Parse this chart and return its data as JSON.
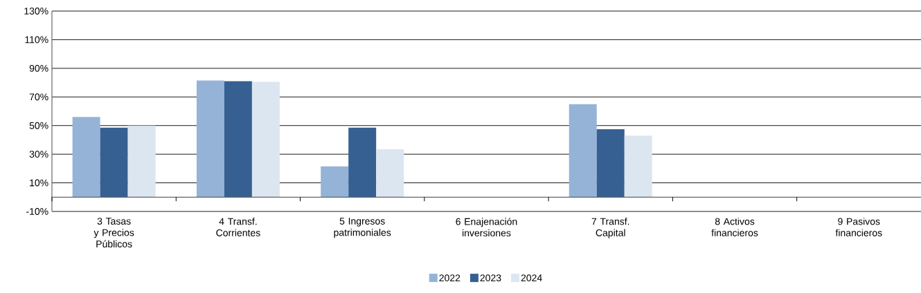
{
  "chart_data": {
    "type": "bar",
    "categories": [
      "3 Tasas y Precios Públicos",
      "4 Transf. Corrientes",
      "5 Ingresos patrimoniales",
      "6 Enajenación inversiones",
      "7 Transf. Capital",
      "8 Activos financieros",
      "9 Pasivos financieros"
    ],
    "series": [
      {
        "name": "2022",
        "color": "#95b3d7",
        "values": [
          56,
          81.5,
          21.5,
          0,
          65,
          0,
          0
        ]
      },
      {
        "name": "2023",
        "color": "#366092",
        "values": [
          48.5,
          81,
          48.5,
          0,
          47.5,
          0,
          0
        ]
      },
      {
        "name": "2024",
        "color": "#dce6f1",
        "values": [
          50,
          80.5,
          33.5,
          0,
          43,
          0,
          0
        ]
      }
    ],
    "ylim": [
      -10,
      130
    ],
    "yticks": [
      {
        "value": -10,
        "label": "-10%"
      },
      {
        "value": 10,
        "label": "10%"
      },
      {
        "value": 30,
        "label": "30%"
      },
      {
        "value": 50,
        "label": "50%"
      },
      {
        "value": 70,
        "label": "70%"
      },
      {
        "value": 90,
        "label": "90%"
      },
      {
        "value": 110,
        "label": "110%"
      },
      {
        "value": 130,
        "label": "130%"
      }
    ],
    "grid": "y",
    "legend": "bottom"
  }
}
